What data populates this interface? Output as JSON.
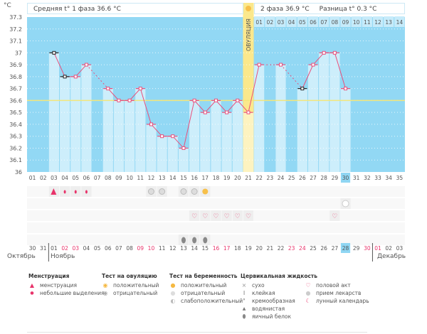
{
  "unit_label": "°C",
  "header": {
    "phase1": "Средняя t° 1 фаза 36.6 °C",
    "phase2": "2 фаза 36.9 °C",
    "diff": "Разница t° 0.3 °C",
    "ovulation_label": "ОВУЛЯЦИЯ"
  },
  "chart_data": {
    "type": "bar",
    "title": "",
    "ylim": [
      36,
      37.3
    ],
    "y_ticks": [
      "36",
      "36.1",
      "36.2",
      "36.3",
      "36.4",
      "36.5",
      "36.6",
      "36.7",
      "36.8",
      "36.9",
      "37",
      "37.1",
      "37.2",
      "37.3"
    ],
    "cycle_days": [
      "01",
      "02",
      "03",
      "04",
      "05",
      "06",
      "07",
      "08",
      "09",
      "10",
      "11",
      "12",
      "13",
      "14",
      "15",
      "16",
      "17",
      "18",
      "19",
      "20",
      "21",
      "22",
      "23",
      "24",
      "25",
      "26",
      "27",
      "28",
      "29",
      "30",
      "31",
      "32",
      "33",
      "34",
      "35"
    ],
    "temperatures": [
      null,
      null,
      37.0,
      36.8,
      36.8,
      36.9,
      null,
      36.7,
      36.6,
      36.6,
      36.7,
      36.4,
      36.3,
      36.3,
      36.2,
      36.6,
      36.5,
      36.6,
      36.5,
      36.6,
      36.5,
      36.9,
      null,
      36.9,
      null,
      36.7,
      36.9,
      37.0,
      37.0,
      36.7,
      null,
      null,
      null,
      null,
      null
    ],
    "excluded_points": [
      3,
      4,
      26
    ],
    "coverline": 36.6,
    "ovulation_day": 21,
    "current_day": 30,
    "phase2_days": [
      "01",
      "02",
      "03",
      "04",
      "05",
      "06",
      "07",
      "08",
      "09",
      "10",
      "11",
      "12",
      "13",
      "14"
    ]
  },
  "markers": {
    "menstruation_heavy": [
      3
    ],
    "menstruation_light": [
      4,
      5,
      6
    ],
    "ovulation_test_negative": [
      12,
      13,
      15,
      16
    ],
    "ovulation_test_positive": [
      17
    ],
    "medication": [
      30
    ],
    "intercourse": [
      16,
      17,
      18,
      19,
      20,
      21,
      29
    ],
    "egg_white": [
      15,
      16,
      17
    ]
  },
  "dates": [
    "30",
    "31",
    "01",
    "02",
    "03",
    "04",
    "05",
    "06",
    "07",
    "08",
    "09",
    "10",
    "11",
    "12",
    "13",
    "14",
    "15",
    "16",
    "17",
    "18",
    "19",
    "20",
    "21",
    "22",
    "23",
    "24",
    "25",
    "26",
    "27",
    "28",
    "29",
    "30",
    "01",
    "02",
    "03"
  ],
  "weekend_dates": [
    4,
    5,
    11,
    12,
    18,
    19,
    25,
    26,
    32,
    33
  ],
  "months": [
    "Октябрь",
    "Ноябрь",
    "Декабрь"
  ],
  "colors": {
    "plot": "#92d8f4",
    "bar": "#cdeefb",
    "line": "#e9507c",
    "coverline": "#f3e67a",
    "ovulation": "#fbe88c",
    "weekend": "#e8336a"
  },
  "legend": {
    "menstruation": {
      "title": "Менструация",
      "items": [
        "менструация",
        "небольшие выделения"
      ]
    },
    "ovulation_test": {
      "title": "Тест на овуляцию",
      "items": [
        "положительный",
        "отрицательный"
      ]
    },
    "pregnancy_test": {
      "title": "Тест на беременность",
      "items": [
        "положительный",
        "отрицательный",
        "слабоположительный"
      ]
    },
    "cervical": {
      "title": "Цервикальная жидкость",
      "items": [
        "сухо",
        "клейкая",
        "кремообразная",
        "водянистая",
        "яичный белок"
      ]
    },
    "other": {
      "items": [
        "половой акт",
        "прием лекарств",
        "лунный календарь"
      ]
    }
  }
}
